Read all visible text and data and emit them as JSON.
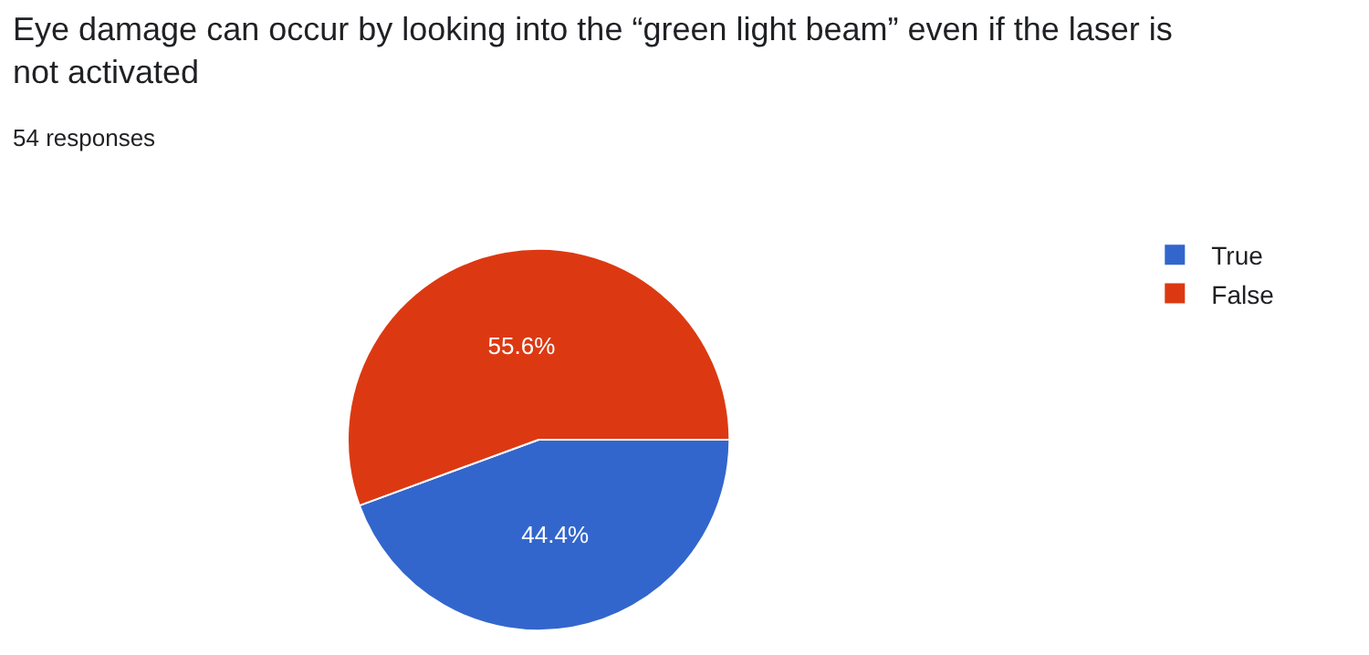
{
  "chart_data": {
    "type": "pie",
    "title": "Eye damage can occur by looking into the “green light beam” even if the laser is not activated",
    "subtitle": "54 responses",
    "categories": [
      "True",
      "False"
    ],
    "values": [
      44.4,
      55.6
    ],
    "colors": [
      "#3366cc",
      "#dc3912"
    ],
    "value_labels": [
      "44.4%",
      "55.6%"
    ],
    "legend": "right"
  }
}
